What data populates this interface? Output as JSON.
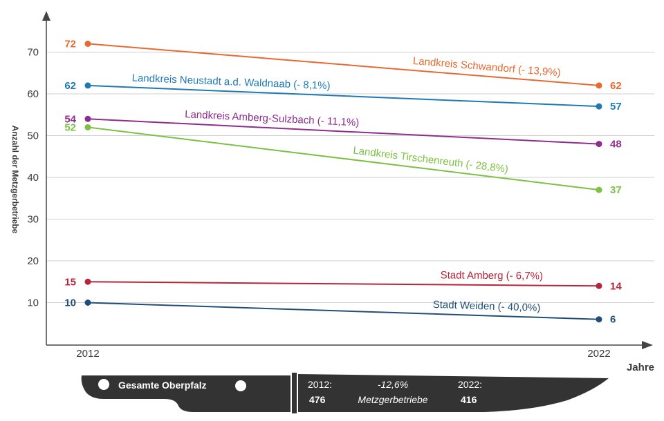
{
  "chart_data": {
    "type": "line",
    "x": [
      "2012",
      "2022"
    ],
    "xlabel": "Jahre",
    "ylabel": "Anzahl der Metzgerbetriebe",
    "ylim": [
      0,
      80
    ],
    "yticks": [
      "10",
      "20",
      "30",
      "40",
      "50",
      "60",
      "70"
    ],
    "grid": true,
    "series": [
      {
        "name": "Landkreis Schwandorf (- 13,9%)",
        "values": [
          72,
          62
        ],
        "color": "#e8692f"
      },
      {
        "name": "Landkreis Neustadt a.d. Waldnaab (- 8,1%)",
        "values": [
          62,
          57
        ],
        "color": "#1f79b4"
      },
      {
        "name": "Landkreis Amberg-Sulzbach (- 11,1%)",
        "values": [
          54,
          48
        ],
        "color": "#8e2d8e"
      },
      {
        "name": "Landkreis Tirschenreuth (- 28,8%)",
        "values": [
          52,
          37
        ],
        "color": "#7cc142"
      },
      {
        "name": "Stadt Amberg (- 6,7%)",
        "values": [
          15,
          14
        ],
        "color": "#b8243a"
      },
      {
        "name": "Stadt Weiden (- 40,0%)",
        "values": [
          10,
          6
        ],
        "color": "#1f4e79"
      }
    ]
  },
  "summary": {
    "title": "Gesamte Oberpfalz",
    "year_start_label": "2012:",
    "year_start_value": "476",
    "change": "-12,6%",
    "unit": "Metzgerbetriebe",
    "year_end_label": "2022:",
    "year_end_value": "416",
    "knife_color": "#333333"
  }
}
